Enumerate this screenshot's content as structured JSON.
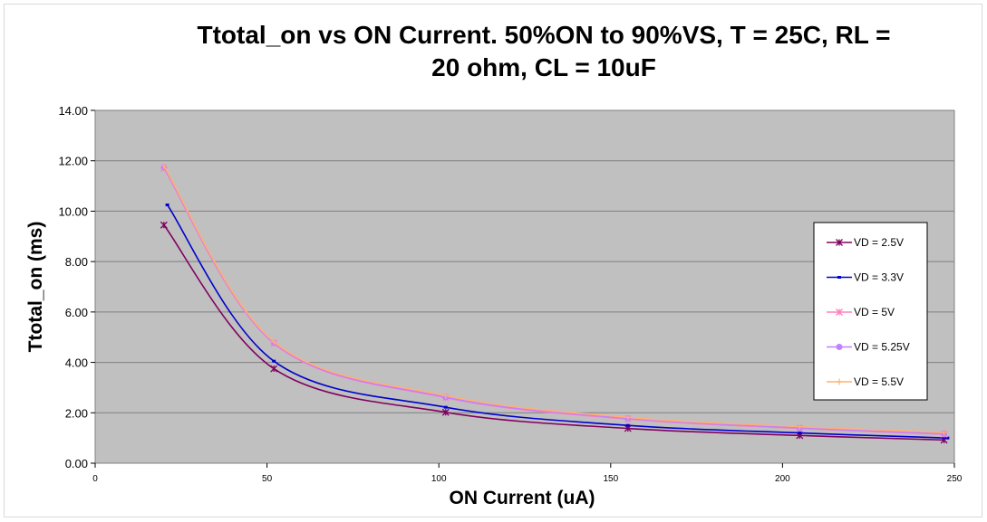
{
  "chart_data": {
    "type": "line",
    "title_line1": "Ttotal_on vs ON Current. 50%ON to 90%VS, T = 25C, RL =",
    "title_line2": "20 ohm, CL = 10uF",
    "xlabel": "ON Current (uA)",
    "ylabel": "Ttotal_on (ms)",
    "xlim": [
      0,
      250
    ],
    "ylim": [
      0,
      14
    ],
    "xticks": [
      0,
      50,
      100,
      150,
      200,
      250
    ],
    "yticks": [
      0,
      2,
      4,
      6,
      8,
      10,
      12,
      14
    ],
    "ytick_labels": [
      "0.00",
      "2.00",
      "4.00",
      "6.00",
      "8.00",
      "10.00",
      "12.00",
      "14.00"
    ],
    "grid": "horizontal",
    "plot_bg": "#c0c0c0",
    "legend_position": "right",
    "series": [
      {
        "name": "VD = 2.5V",
        "color": "#800060",
        "marker": "star",
        "x": [
          20,
          52,
          102,
          155,
          205,
          247
        ],
        "y": [
          9.45,
          3.75,
          2.02,
          1.38,
          1.1,
          0.92
        ]
      },
      {
        "name": "VD = 3.3V",
        "color": "#0000cc",
        "marker": "dash",
        "x": [
          21,
          52,
          102,
          155,
          205,
          248
        ],
        "y": [
          10.25,
          4.05,
          2.22,
          1.5,
          1.2,
          1.0
        ]
      },
      {
        "name": "VD = 5V",
        "color": "#ff80c0",
        "marker": "asterisk",
        "x": [
          20,
          52,
          102,
          155,
          205,
          247
        ],
        "y": [
          11.7,
          4.75,
          2.6,
          1.75,
          1.38,
          1.15
        ]
      },
      {
        "name": "VD = 5.25V",
        "color": "#c080ff",
        "marker": "circle",
        "x": [
          20,
          52,
          102,
          155,
          205,
          247
        ],
        "y": [
          11.75,
          4.78,
          2.62,
          1.78,
          1.4,
          1.17
        ]
      },
      {
        "name": "VD = 5.5V",
        "color": "#ffb070",
        "marker": "plus",
        "x": [
          20,
          52,
          102,
          155,
          205,
          247
        ],
        "y": [
          11.8,
          4.82,
          2.68,
          1.82,
          1.45,
          1.22
        ]
      }
    ]
  }
}
